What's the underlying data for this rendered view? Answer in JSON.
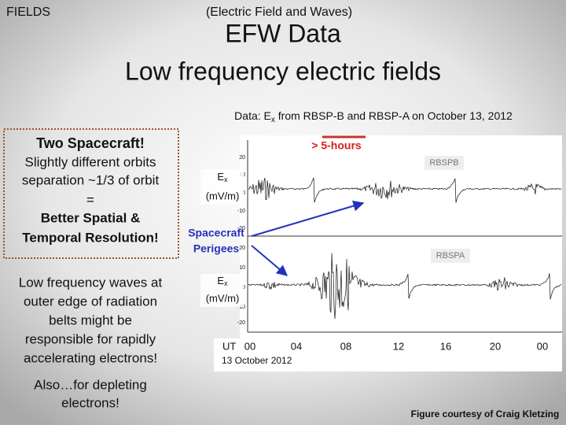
{
  "header": {
    "label": "FIELDS",
    "subtitle": "(Electric Field and Waves)",
    "title": "EFW Data",
    "title2": "Low frequency electric fields"
  },
  "caption": {
    "prefix": "Data: E",
    "sub": "x",
    "suffix": " from RBSP-B and RBSP-A on October 13, 2012"
  },
  "left_box": {
    "heading": "Two Spacecraft!",
    "lines": [
      "Slightly different orbits",
      "separation ~1/3 of orbit",
      "=",
      "Better Spatial &",
      "Temporal Resolution!"
    ]
  },
  "left_text": {
    "lines": [
      "Low frequency waves at",
      "outer edge of radiation",
      "belts might be",
      "responsible for rapidly",
      "accelerating electrons!"
    ]
  },
  "left_text2": {
    "lines": [
      "Also…for depleting",
      "electrons!"
    ]
  },
  "plot": {
    "span_label": "> 5-hours",
    "panels": [
      {
        "name": "RBSPB",
        "ylabel_prefix": "E",
        "ylabel_sub": "x",
        "ylabel_unit": "(mV/m)",
        "ticks": [
          "20",
          "10",
          "0",
          "-10",
          "-20"
        ]
      },
      {
        "name": "RBSPA",
        "ylabel_prefix": "E",
        "ylabel_sub": "x",
        "ylabel_unit": "(mV/m)",
        "ticks": [
          "20",
          "10",
          "0",
          "-10",
          "-20"
        ]
      }
    ],
    "arrow_label": [
      "Spacecraft",
      "Perigees"
    ],
    "x_prefix": "UT",
    "x_ticks": [
      "00",
      "04",
      "08",
      "12",
      "16",
      "20",
      "00"
    ],
    "date": "13 October 2012"
  },
  "credit": "Figure courtesy of Craig Kletzing"
}
